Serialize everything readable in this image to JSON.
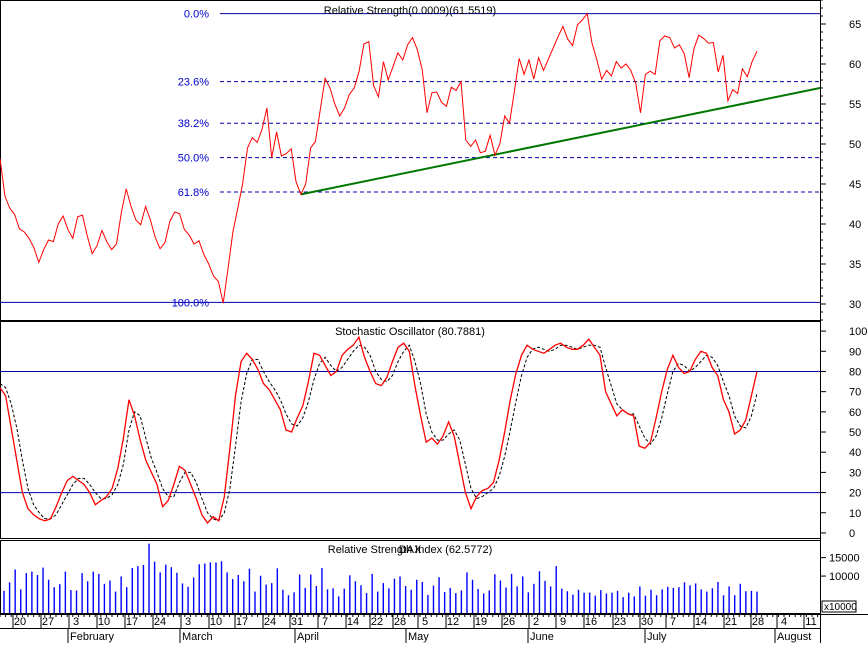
{
  "colors": {
    "background": "#ffffff",
    "frame": "#000000",
    "rs_line": "#ff0000",
    "trendline": "#007700",
    "fib_line": "#0000aa",
    "fib_text": "#0000cc",
    "stoch_k": "#ff0000",
    "stoch_d": "#000000",
    "stoch_level": "#0000aa",
    "volume_bar": "#0000ff"
  },
  "chart_data": [
    {
      "type": "line",
      "title": "Relative Strength(0.0009)(61.5519)",
      "y_ticks": [
        "30",
        "35",
        "40",
        "45",
        "50",
        "55",
        "60",
        "65"
      ],
      "ylim": [
        28,
        68
      ],
      "fib_labels": [
        "0.0%",
        "23.6%",
        "38.2%",
        "50.0%",
        "61.8%",
        "100.0%"
      ],
      "fib_levels": [
        66.3,
        57.8,
        52.6,
        48.3,
        44.0,
        30.2
      ],
      "trendline": {
        "start": [
          "Mar 31",
          43.7
        ],
        "end": [
          "Aug 3",
          57.0
        ]
      },
      "series": [
        {
          "values": [
            48.2,
            43.5,
            42,
            41.2,
            39.4,
            39,
            38.2,
            37,
            35.2,
            36.8,
            38,
            37.8,
            40,
            41,
            39.3,
            38.2,
            40.9,
            41.1,
            38.5,
            36.3,
            37.3,
            39.2,
            37.8,
            36.8,
            37.5,
            41.4,
            44.4,
            42.2,
            40.5,
            39.9,
            42.2,
            40.5,
            38.3,
            36.9,
            37.7,
            40.3,
            41.5,
            41.3,
            39.3,
            38.6,
            37.5,
            37.9,
            36.2,
            35,
            33.5,
            32.8,
            30.1,
            34.5,
            39,
            42,
            45,
            49.5,
            50.8,
            50.2,
            51.8,
            54.5,
            48.3,
            51.5,
            48.5,
            48.8,
            49.4,
            45.3,
            43.7,
            45,
            49.5,
            50.3,
            54.3,
            58.2,
            57,
            55,
            53.5,
            54.5,
            56.2,
            57,
            59.1,
            62.5,
            62.8,
            57.3,
            55.9,
            60.3,
            58,
            59.7,
            61.4,
            60.5,
            62.4,
            63.3,
            61.8,
            59.3,
            53.9,
            56.4,
            56.5,
            55.2,
            54.7,
            57.1,
            56.7,
            57.8,
            50.5,
            49.7,
            50.5,
            48.9,
            49.1,
            51.1,
            48.6,
            50,
            53.5,
            52.6,
            56.6,
            60.7,
            58.7,
            60.5,
            58.1,
            60.8,
            59.2,
            60.6,
            62,
            63.4,
            64.7,
            63.1,
            62.3,
            64.9,
            65.5,
            66.3,
            62.6,
            60.5,
            58.1,
            59.2,
            58.5,
            60.3,
            59.5,
            60,
            59.2,
            57.6,
            53.9,
            58.7,
            59.1,
            58.7,
            62.9,
            63.5,
            63.3,
            62,
            62.4,
            61.3,
            58.3,
            61.9,
            63.6,
            63.2,
            62.6,
            62.7,
            59,
            61.1,
            55.4,
            56.8,
            56.3,
            59.4,
            58.4,
            60.3,
            61.6
          ]
        }
      ]
    },
    {
      "type": "line",
      "title": "Stochastic Oscillator (80.7881)",
      "y_ticks": [
        "0",
        "10",
        "20",
        "30",
        "40",
        "50",
        "60",
        "70",
        "80",
        "90",
        "100"
      ],
      "ylim": [
        -3,
        105
      ],
      "levels": [
        80,
        20
      ],
      "series": [
        {
          "values": [
            72,
            68,
            52,
            36,
            20,
            12,
            9,
            7,
            6,
            7,
            13,
            20,
            26,
            28,
            26,
            24,
            20,
            14,
            16,
            18,
            22,
            32,
            47,
            66,
            58,
            46,
            36,
            30,
            24,
            13,
            16,
            24,
            33,
            31,
            24,
            17,
            9,
            5,
            8,
            6,
            18,
            42,
            68,
            85,
            89,
            86,
            81,
            74,
            71,
            66,
            61,
            51,
            50,
            57,
            63,
            75,
            89,
            88,
            83,
            78,
            80,
            88,
            91,
            93,
            97,
            87,
            80,
            74,
            73,
            77,
            85,
            92,
            94,
            90,
            73,
            58,
            45,
            47,
            44,
            48,
            55,
            48,
            34,
            20,
            12,
            18,
            21,
            22,
            25,
            36,
            50,
            66,
            79,
            88,
            93,
            91,
            90,
            89,
            91,
            93,
            94,
            92,
            91,
            91,
            93,
            96,
            92,
            88,
            70,
            64,
            58,
            61,
            59,
            58,
            43,
            42,
            45,
            57,
            70,
            81,
            88,
            82,
            79,
            80,
            86,
            90,
            89,
            82,
            78,
            66,
            60,
            49,
            51,
            56,
            68,
            80
          ]
        },
        {
          "values": [
            74,
            72,
            64,
            52,
            36,
            22,
            14,
            10,
            7,
            7,
            9,
            14,
            19,
            24,
            27,
            27,
            24,
            20,
            17,
            17,
            19,
            24,
            34,
            51,
            60,
            58,
            47,
            37,
            30,
            22,
            18,
            18,
            25,
            30,
            30,
            25,
            17,
            10,
            7,
            6,
            10,
            22,
            43,
            65,
            79,
            86,
            86,
            80,
            75,
            71,
            66,
            59,
            54,
            53,
            57,
            65,
            76,
            84,
            87,
            83,
            80,
            82,
            86,
            90,
            93,
            92,
            88,
            80,
            76,
            75,
            78,
            85,
            90,
            93,
            85,
            74,
            59,
            50,
            46,
            46,
            49,
            51,
            46,
            34,
            22,
            17,
            18,
            20,
            22,
            28,
            38,
            51,
            65,
            78,
            87,
            91,
            92,
            91,
            90,
            91,
            93,
            93,
            92,
            91,
            92,
            93,
            93,
            92,
            82,
            73,
            64,
            61,
            59,
            59,
            53,
            47,
            44,
            48,
            57,
            69,
            80,
            84,
            83,
            80,
            82,
            85,
            88,
            87,
            83,
            75,
            68,
            58,
            53,
            52,
            58,
            69
          ]
        }
      ]
    },
    {
      "type": "bar",
      "title": "Relative Strength Index (62.5772)",
      "overlay": "DAX",
      "y_ticks": [
        "15000",
        "10000",
        "x10000"
      ],
      "ylim": [
        0,
        19500
      ],
      "values": [
        6000,
        8300,
        11800,
        6400,
        10800,
        11200,
        10300,
        12300,
        9000,
        7000,
        7800,
        11200,
        6200,
        6100,
        10800,
        8600,
        11200,
        10600,
        7900,
        8800,
        5800,
        9900,
        7000,
        12200,
        12700,
        13000,
        18800,
        13900,
        11000,
        13100,
        12400,
        10900,
        8000,
        7100,
        9600,
        13200,
        13400,
        13700,
        13700,
        14000,
        11000,
        9200,
        10300,
        8600,
        12000,
        5800,
        10100,
        7700,
        8100,
        12100,
        6300,
        4800,
        5600,
        10400,
        6800,
        10400,
        7300,
        12200,
        6400,
        6700,
        4500,
        6600,
        10200,
        8600,
        7500,
        5400,
        10600,
        5800,
        8100,
        6700,
        9300,
        9900,
        7300,
        6300,
        9000,
        8400,
        4900,
        7400,
        9700,
        5700,
        6800,
        5400,
        6100,
        11000,
        9000,
        6500,
        5300,
        6100,
        10500,
        8800,
        6900,
        10600,
        7200,
        9900,
        5600,
        7900,
        11300,
        8700,
        7200,
        12700,
        6600,
        5900,
        5000,
        6300,
        5500,
        5500,
        4700,
        6200,
        5300,
        5500,
        6000,
        4300,
        5500,
        4500,
        7200,
        4700,
        6300,
        4800,
        6400,
        7100,
        6800,
        7000,
        8300,
        7500,
        8000,
        6400,
        5800,
        6700,
        8400,
        4800,
        7200,
        4800,
        7900,
        5900,
        6000,
        5800
      ]
    }
  ],
  "x_axis": {
    "day_ticks": [
      "20",
      "27",
      "3",
      "10",
      "17",
      "24",
      "3",
      "10",
      "17",
      "24",
      "31",
      "7",
      "14",
      "22",
      "28",
      "5",
      "12",
      "19",
      "26",
      "2",
      "9",
      "16",
      "23",
      "30",
      "7",
      "14",
      "21",
      "28",
      "4",
      "11"
    ],
    "months": [
      "February",
      "March",
      "April",
      "May",
      "June",
      "July",
      "August"
    ]
  }
}
